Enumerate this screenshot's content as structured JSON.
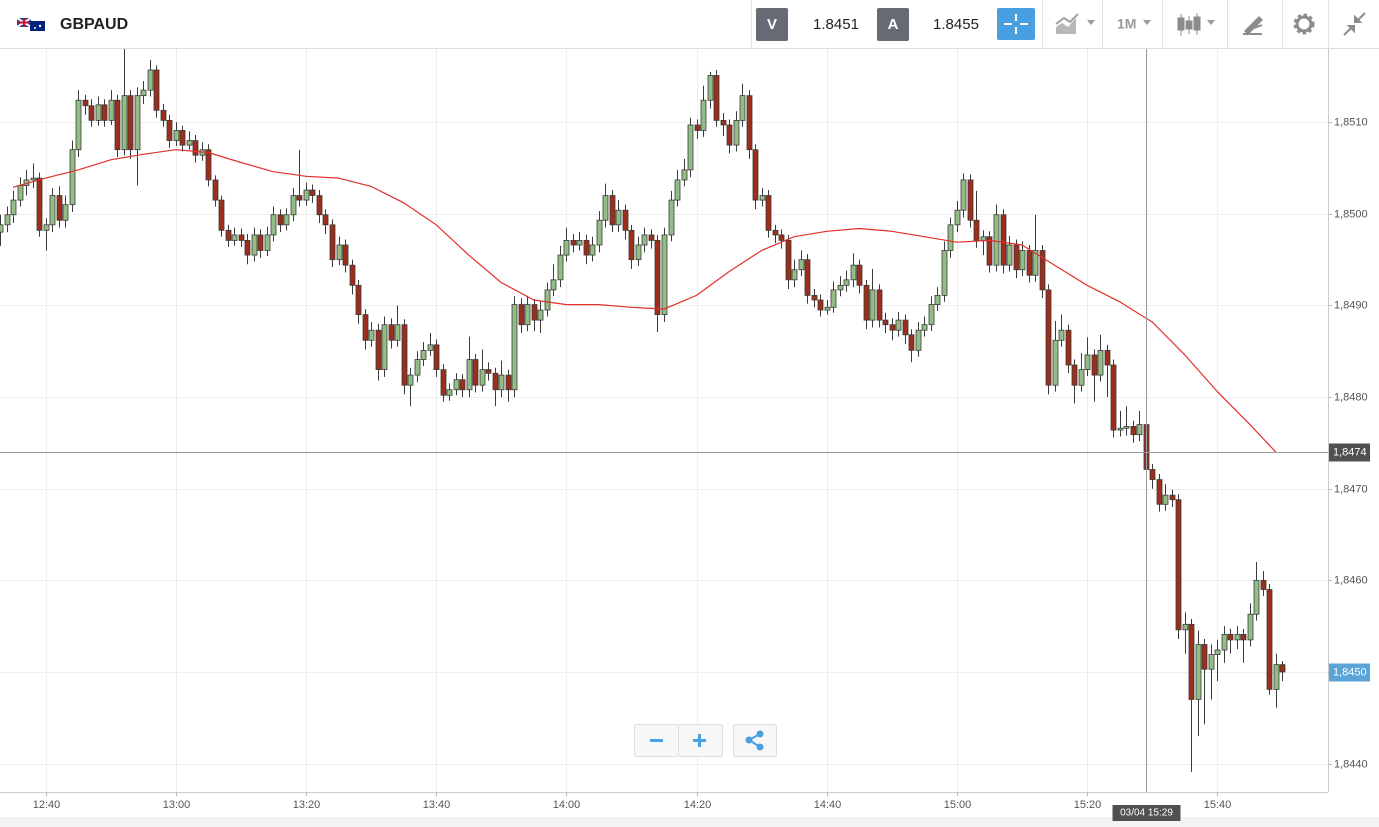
{
  "toolbar": {
    "symbol": "GBPAUD",
    "sell": {
      "label": "V",
      "price": 1.8451
    },
    "buy": {
      "label": "A",
      "price": 1.8455
    },
    "timeframe": "1M"
  },
  "chart_data": {
    "type": "candlestick",
    "xlim": [
      "12:33",
      "15:57"
    ],
    "xticks": [
      "12:40",
      "13:00",
      "13:20",
      "13:40",
      "14:00",
      "14:20",
      "14:40",
      "15:00",
      "15:20",
      "15:40"
    ],
    "ylim": [
      1.84369,
      1.85181
    ],
    "yticks": [
      {
        "value": 1.844,
        "label": "1,8440"
      },
      {
        "value": 1.845,
        "label": "1,8450"
      },
      {
        "value": 1.846,
        "label": "1,8460"
      },
      {
        "value": 1.847,
        "label": "1,8470"
      },
      {
        "value": 1.848,
        "label": "1,8480"
      },
      {
        "value": 1.849,
        "label": "1,8490"
      },
      {
        "value": 1.85,
        "label": "1,8500"
      },
      {
        "value": 1.851,
        "label": "1,8510"
      }
    ],
    "grid": true,
    "colors": {
      "up": "#93bd85",
      "down": "#9c2e1c",
      "outline": "#3b3b3b"
    },
    "x": [
      "12:33",
      "12:34",
      "12:35",
      "12:36",
      "12:37",
      "12:38",
      "12:39",
      "12:40",
      "12:41",
      "12:42",
      "12:43",
      "12:44",
      "12:45",
      "12:46",
      "12:47",
      "12:48",
      "12:49",
      "12:50",
      "12:51",
      "12:52",
      "12:53",
      "12:54",
      "12:55",
      "12:56",
      "12:57",
      "12:58",
      "12:59",
      "13:00",
      "13:01",
      "13:02",
      "13:03",
      "13:04",
      "13:05",
      "13:06",
      "13:07",
      "13:08",
      "13:09",
      "13:10",
      "13:11",
      "13:12",
      "13:13",
      "13:14",
      "13:15",
      "13:16",
      "13:17",
      "13:18",
      "13:19",
      "13:20",
      "13:21",
      "13:22",
      "13:23",
      "13:24",
      "13:25",
      "13:26",
      "13:27",
      "13:28",
      "13:29",
      "13:30",
      "13:31",
      "13:32",
      "13:33",
      "13:34",
      "13:35",
      "13:36",
      "13:37",
      "13:38",
      "13:39",
      "13:40",
      "13:41",
      "13:42",
      "13:43",
      "13:44",
      "13:45",
      "13:46",
      "13:47",
      "13:48",
      "13:49",
      "13:50",
      "13:51",
      "13:52",
      "13:53",
      "13:54",
      "13:55",
      "13:56",
      "13:57",
      "13:58",
      "13:59",
      "14:00",
      "14:01",
      "14:02",
      "14:03",
      "14:04",
      "14:05",
      "14:06",
      "14:07",
      "14:08",
      "14:09",
      "14:10",
      "14:11",
      "14:12",
      "14:13",
      "14:14",
      "14:15",
      "14:16",
      "14:17",
      "14:18",
      "14:19",
      "14:20",
      "14:21",
      "14:22",
      "14:23",
      "14:24",
      "14:25",
      "14:26",
      "14:27",
      "14:28",
      "14:29",
      "14:30",
      "14:31",
      "14:32",
      "14:33",
      "14:34",
      "14:35",
      "14:36",
      "14:37",
      "14:38",
      "14:39",
      "14:40",
      "14:41",
      "14:42",
      "14:43",
      "14:44",
      "14:45",
      "14:46",
      "14:47",
      "14:48",
      "14:49",
      "14:50",
      "14:51",
      "14:52",
      "14:53",
      "14:54",
      "14:55",
      "14:56",
      "14:57",
      "14:58",
      "14:59",
      "15:00",
      "15:01",
      "15:02",
      "15:03",
      "15:04",
      "15:05",
      "15:06",
      "15:07",
      "15:08",
      "15:09",
      "15:10",
      "15:11",
      "15:12",
      "15:13",
      "15:14",
      "15:15",
      "15:16",
      "15:17",
      "15:18",
      "15:19",
      "15:20",
      "15:21",
      "15:22",
      "15:23",
      "15:24",
      "15:25",
      "15:26",
      "15:27",
      "15:28",
      "15:29",
      "15:30",
      "15:31",
      "15:32",
      "15:33",
      "15:34",
      "15:35",
      "15:36",
      "15:37",
      "15:38",
      "15:39",
      "15:40",
      "15:41",
      "15:42",
      "15:43",
      "15:44",
      "15:45",
      "15:46",
      "15:47",
      "15:48",
      "15:49",
      "15:50"
    ],
    "open": [
      1.8498,
      1.84988,
      1.84999,
      1.85015,
      1.85031,
      1.85037,
      1.85039,
      1.84982,
      1.84988,
      1.8502,
      1.84993,
      1.8501,
      1.8507,
      1.85124,
      1.85118,
      1.85102,
      1.85119,
      1.85102,
      1.85124,
      1.8507,
      1.85129,
      1.8507,
      1.85129,
      1.85135,
      1.85157,
      1.85113,
      1.85102,
      1.8508,
      1.85091,
      1.85075,
      1.8508,
      1.85064,
      1.8507,
      1.85037,
      1.85015,
      1.84982,
      1.84971,
      1.84977,
      1.84971,
      1.84955,
      1.84977,
      1.8496,
      1.84977,
      1.84999,
      1.84988,
      1.84999,
      1.8502,
      1.85015,
      1.85026,
      1.8502,
      1.84999,
      1.84988,
      1.8495,
      1.84966,
      1.84944,
      1.84922,
      1.8489,
      1.84862,
      1.84873,
      1.8483,
      1.84879,
      1.84862,
      1.84879,
      1.84813,
      1.84824,
      1.84841,
      1.84851,
      1.84857,
      1.8483,
      1.84802,
      1.84808,
      1.84819,
      1.84808,
      1.84841,
      1.84813,
      1.8483,
      1.84826,
      1.84808,
      1.84824,
      1.84808,
      1.84901,
      1.84879,
      1.84901,
      1.84884,
      1.84895,
      1.84917,
      1.84928,
      1.84955,
      1.84971,
      1.84966,
      1.84971,
      1.84955,
      1.84966,
      1.84993,
      1.8502,
      1.84988,
      1.85004,
      1.84982,
      1.8495,
      1.84966,
      1.84977,
      1.84971,
      1.8489,
      1.84977,
      1.85015,
      1.85037,
      1.85048,
      1.85097,
      1.85091,
      1.85124,
      1.85151,
      1.85102,
      1.85097,
      1.85075,
      1.85102,
      1.85129,
      1.8507,
      1.85015,
      1.8502,
      1.84982,
      1.84977,
      1.84971,
      1.84928,
      1.84939,
      1.8495,
      1.84911,
      1.84906,
      1.84895,
      1.84898,
      1.84917,
      1.84922,
      1.84928,
      1.84944,
      1.84922,
      1.84884,
      1.84917,
      1.84884,
      1.84879,
      1.84873,
      1.84884,
      1.84868,
      1.84851,
      1.84873,
      1.84879,
      1.84901,
      1.84911,
      1.8496,
      1.84988,
      1.85004,
      1.85037,
      1.84993,
      1.84971,
      1.84975,
      1.84944,
      1.84999,
      1.84944,
      1.84966,
      1.84939,
      1.8496,
      1.84933,
      1.8496,
      1.84917,
      1.84813,
      1.84862,
      1.84873,
      1.84835,
      1.84813,
      1.8483,
      1.84846,
      1.84824,
      1.84851,
      1.84835,
      1.84764,
      1.84766,
      1.84768,
      1.84759,
      1.8477,
      1.84721,
      1.8471,
      1.84683,
      1.84693,
      1.84688,
      1.84546,
      1.84552,
      1.8447,
      1.8453,
      1.84503,
      1.84519,
      1.84524,
      1.84541,
      1.84535,
      1.84541,
      1.84535,
      1.84563,
      1.846,
      1.8459,
      1.84481,
      1.84508
    ],
    "high": [
      1.84999,
      1.85008,
      1.85025,
      1.8504,
      1.85048,
      1.85055,
      1.85045,
      1.84995,
      1.85028,
      1.8503,
      1.8502,
      1.8508,
      1.85135,
      1.8513,
      1.85125,
      1.85128,
      1.85125,
      1.85135,
      1.8513,
      1.85181,
      1.85135,
      1.85138,
      1.85145,
      1.85168,
      1.85162,
      1.8512,
      1.85108,
      1.851,
      1.85096,
      1.8509,
      1.85086,
      1.85078,
      1.85076,
      1.85042,
      1.8502,
      1.84988,
      1.84985,
      1.84984,
      1.84978,
      1.84985,
      1.84983,
      1.84986,
      1.85008,
      1.85005,
      1.85006,
      1.85028,
      1.8507,
      1.85034,
      1.85032,
      1.85026,
      1.85005,
      1.84994,
      1.84975,
      1.84972,
      1.8495,
      1.84928,
      1.84896,
      1.84882,
      1.8488,
      1.84888,
      1.84886,
      1.849,
      1.84885,
      1.84832,
      1.8485,
      1.8486,
      1.8487,
      1.84863,
      1.84836,
      1.84815,
      1.84826,
      1.84825,
      1.84866,
      1.84847,
      1.84852,
      1.84838,
      1.84832,
      1.8484,
      1.8483,
      1.8491,
      1.84908,
      1.8491,
      1.84907,
      1.84905,
      1.84925,
      1.84945,
      1.84965,
      1.84985,
      1.84978,
      1.8498,
      1.84977,
      1.84975,
      1.85003,
      1.85033,
      1.85026,
      1.85015,
      1.8501,
      1.84988,
      1.84975,
      1.84985,
      1.84983,
      1.84977,
      1.84985,
      1.85025,
      1.85048,
      1.8506,
      1.85105,
      1.85103,
      1.8514,
      1.85155,
      1.85157,
      1.8511,
      1.85103,
      1.85112,
      1.85142,
      1.85135,
      1.85076,
      1.85028,
      1.85026,
      1.84988,
      1.84983,
      1.84977,
      1.8495,
      1.8496,
      1.84956,
      1.84918,
      1.84912,
      1.84906,
      1.84926,
      1.84932,
      1.84938,
      1.84957,
      1.8495,
      1.84928,
      1.8494,
      1.84923,
      1.84892,
      1.84886,
      1.84893,
      1.8489,
      1.84874,
      1.84882,
      1.84888,
      1.8491,
      1.8492,
      1.8497,
      1.84996,
      1.85014,
      1.85044,
      1.85043,
      1.85025,
      1.84982,
      1.84981,
      1.8501,
      1.85005,
      1.84976,
      1.84972,
      1.8497,
      1.84966,
      1.84999,
      1.84966,
      1.84923,
      1.84883,
      1.8489,
      1.84879,
      1.84841,
      1.84848,
      1.84865,
      1.84852,
      1.84868,
      1.84857,
      1.84841,
      1.84785,
      1.8479,
      1.84774,
      1.84785,
      1.84776,
      1.84727,
      1.84716,
      1.84705,
      1.84699,
      1.84694,
      1.84565,
      1.84558,
      1.84545,
      1.84536,
      1.8453,
      1.84535,
      1.8455,
      1.84547,
      1.8455,
      1.84547,
      1.84575,
      1.8462,
      1.8461,
      1.84596,
      1.8452,
      1.84512
    ],
    "low": [
      1.84965,
      1.8498,
      1.8499,
      1.85008,
      1.8502,
      1.85028,
      1.84975,
      1.8496,
      1.8498,
      1.84985,
      1.84985,
      1.85002,
      1.85062,
      1.85108,
      1.85095,
      1.85096,
      1.85095,
      1.85097,
      1.85062,
      1.85064,
      1.8506,
      1.85031,
      1.8512,
      1.85128,
      1.85105,
      1.85095,
      1.85072,
      1.85074,
      1.85068,
      1.8507,
      1.85056,
      1.85058,
      1.8503,
      1.85008,
      1.84975,
      1.84964,
      1.84965,
      1.84964,
      1.84945,
      1.84948,
      1.84952,
      1.84954,
      1.8497,
      1.8498,
      1.84982,
      1.84992,
      1.85008,
      1.85009,
      1.85012,
      1.8499,
      1.84978,
      1.84942,
      1.84944,
      1.84936,
      1.84912,
      1.8488,
      1.84852,
      1.84855,
      1.84818,
      1.84822,
      1.84853,
      1.84855,
      1.84803,
      1.8479,
      1.84816,
      1.84834,
      1.84845,
      1.84822,
      1.84795,
      1.84796,
      1.84802,
      1.848,
      1.848,
      1.84805,
      1.84806,
      1.84818,
      1.8479,
      1.848,
      1.84795,
      1.848,
      1.8487,
      1.84872,
      1.84872,
      1.8487,
      1.84888,
      1.8491,
      1.8492,
      1.84948,
      1.84958,
      1.8496,
      1.84945,
      1.84948,
      1.84958,
      1.84985,
      1.8498,
      1.8498,
      1.84972,
      1.8494,
      1.84943,
      1.84958,
      1.84962,
      1.84871,
      1.84882,
      1.8497,
      1.85008,
      1.8503,
      1.8504,
      1.85082,
      1.85084,
      1.85115,
      1.85095,
      1.85085,
      1.85066,
      1.85068,
      1.85095,
      1.8506,
      1.85005,
      1.85008,
      1.84974,
      1.84968,
      1.84962,
      1.84918,
      1.8492,
      1.84932,
      1.84902,
      1.84898,
      1.84888,
      1.8489,
      1.84892,
      1.8491,
      1.84915,
      1.8492,
      1.84913,
      1.84874,
      1.84876,
      1.84876,
      1.8487,
      1.84862,
      1.84866,
      1.84858,
      1.84838,
      1.84844,
      1.84866,
      1.84872,
      1.84894,
      1.84904,
      1.84952,
      1.8498,
      1.84996,
      1.84985,
      1.84963,
      1.84955,
      1.84936,
      1.84937,
      1.84935,
      1.84937,
      1.8493,
      1.84932,
      1.84925,
      1.84926,
      1.84908,
      1.84803,
      1.84806,
      1.84855,
      1.84826,
      1.84793,
      1.84806,
      1.84823,
      1.84795,
      1.84817,
      1.848,
      1.84756,
      1.84757,
      1.84758,
      1.8475,
      1.84752,
      1.84712,
      1.847,
      1.84675,
      1.84676,
      1.8468,
      1.84536,
      1.8452,
      1.84391,
      1.8443,
      1.84443,
      1.8447,
      1.8449,
      1.8451,
      1.8452,
      1.84525,
      1.8451,
      1.84528,
      1.84556,
      1.84583,
      1.84475,
      1.84461,
      1.8449
    ],
    "close": [
      1.84988,
      1.84999,
      1.85015,
      1.85031,
      1.85037,
      1.85039,
      1.84982,
      1.84988,
      1.8502,
      1.84993,
      1.8501,
      1.8507,
      1.85124,
      1.85118,
      1.85102,
      1.85119,
      1.85102,
      1.85124,
      1.8507,
      1.85129,
      1.8507,
      1.85129,
      1.85135,
      1.85157,
      1.85113,
      1.85102,
      1.8508,
      1.85091,
      1.85075,
      1.8508,
      1.85064,
      1.8507,
      1.85037,
      1.85015,
      1.84982,
      1.84971,
      1.84977,
      1.84971,
      1.84955,
      1.84977,
      1.8496,
      1.84977,
      1.84999,
      1.84988,
      1.84999,
      1.8502,
      1.85015,
      1.85026,
      1.8502,
      1.84999,
      1.84988,
      1.8495,
      1.84966,
      1.84944,
      1.84922,
      1.8489,
      1.84862,
      1.84873,
      1.8483,
      1.84879,
      1.84862,
      1.84879,
      1.84813,
      1.84824,
      1.84841,
      1.84851,
      1.84857,
      1.8483,
      1.84802,
      1.84808,
      1.84819,
      1.84808,
      1.84841,
      1.84813,
      1.8483,
      1.84826,
      1.84808,
      1.84824,
      1.84808,
      1.84901,
      1.84879,
      1.84901,
      1.84884,
      1.84895,
      1.84917,
      1.84928,
      1.84955,
      1.84971,
      1.84966,
      1.84971,
      1.84955,
      1.84966,
      1.84993,
      1.8502,
      1.84988,
      1.85004,
      1.84982,
      1.8495,
      1.84966,
      1.84977,
      1.84971,
      1.8489,
      1.84977,
      1.85015,
      1.85037,
      1.85048,
      1.85097,
      1.85091,
      1.85124,
      1.85151,
      1.85102,
      1.85097,
      1.85075,
      1.85102,
      1.85129,
      1.8507,
      1.85015,
      1.8502,
      1.84982,
      1.84977,
      1.84971,
      1.84928,
      1.84939,
      1.8495,
      1.84911,
      1.84906,
      1.84895,
      1.84898,
      1.84917,
      1.84922,
      1.84928,
      1.84944,
      1.84922,
      1.84884,
      1.84917,
      1.84884,
      1.84879,
      1.84873,
      1.84884,
      1.84868,
      1.84851,
      1.84873,
      1.84879,
      1.84901,
      1.84911,
      1.8496,
      1.84988,
      1.85004,
      1.85037,
      1.84993,
      1.84971,
      1.84975,
      1.84944,
      1.84999,
      1.84944,
      1.84966,
      1.84939,
      1.8496,
      1.84933,
      1.8496,
      1.84917,
      1.84813,
      1.84862,
      1.84873,
      1.84835,
      1.84813,
      1.8483,
      1.84846,
      1.84824,
      1.84851,
      1.84835,
      1.84764,
      1.84766,
      1.84768,
      1.84759,
      1.8477,
      1.84721,
      1.8471,
      1.84683,
      1.84693,
      1.84688,
      1.84546,
      1.84552,
      1.8447,
      1.8453,
      1.84503,
      1.84519,
      1.84524,
      1.84541,
      1.84535,
      1.84541,
      1.84535,
      1.84563,
      1.846,
      1.8459,
      1.84481,
      1.84508,
      1.845
    ],
    "moving_average": {
      "color": "#e2302a",
      "x": [
        "12:35",
        "12:40",
        "12:45",
        "12:50",
        "12:55",
        "13:00",
        "13:05",
        "13:10",
        "13:15",
        "13:20",
        "13:25",
        "13:30",
        "13:35",
        "13:40",
        "13:45",
        "13:50",
        "13:55",
        "14:00",
        "14:05",
        "14:10",
        "14:15",
        "14:20",
        "14:25",
        "14:30",
        "14:35",
        "14:40",
        "14:45",
        "14:50",
        "14:55",
        "15:00",
        "15:05",
        "15:10",
        "15:15",
        "15:20",
        "15:25",
        "15:30",
        "15:35",
        "15:40",
        "15:45",
        "15:49"
      ],
      "values": [
        1.85029,
        1.85039,
        1.85048,
        1.85059,
        1.85065,
        1.8507,
        1.85067,
        1.85056,
        1.85046,
        1.85041,
        1.85039,
        1.8503,
        1.85012,
        1.84988,
        1.84955,
        1.84925,
        1.84906,
        1.84901,
        1.84901,
        1.84898,
        1.84896,
        1.84911,
        1.84937,
        1.8496,
        1.84975,
        1.84981,
        1.84984,
        1.84981,
        1.84975,
        1.84969,
        1.84971,
        1.84966,
        1.84944,
        1.84922,
        1.84904,
        1.84882,
        1.84846,
        1.84806,
        1.8477,
        1.8474
      ]
    },
    "crosshair": {
      "x": "15:29",
      "x_label": "03/04 15:29",
      "y": {
        "value": 1.8474,
        "label": "1,8474"
      }
    },
    "last_price": {
      "value": 1.845,
      "label": "1,8450"
    }
  }
}
